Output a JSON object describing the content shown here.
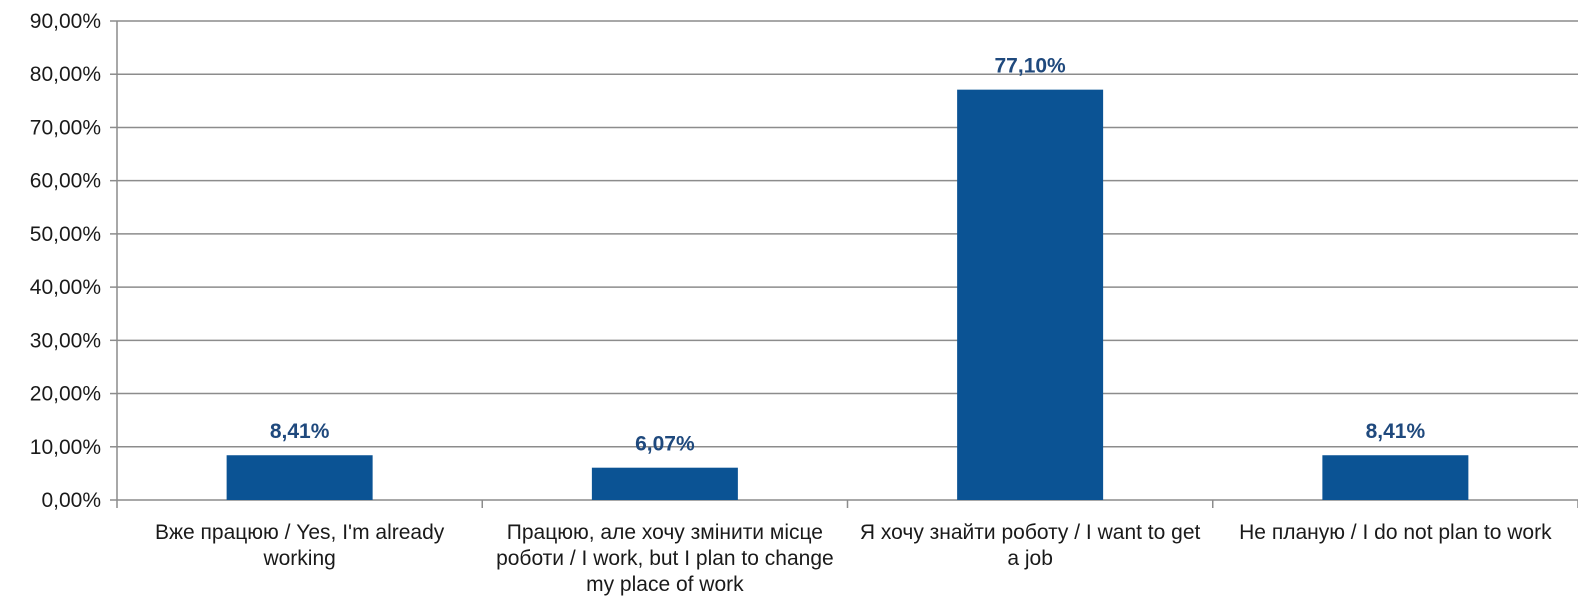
{
  "chart_data": {
    "type": "bar",
    "categories": [
      "Вже працюю / Yes, I'm already working",
      "Працюю, але хочу змінити місце роботи / I work, but I plan to change my place of work",
      "Я хочу знайти роботу / I want to get a job",
      "Не планую / I do not plan to work"
    ],
    "series": [
      {
        "values": [
          8.41,
          6.07,
          77.1,
          8.41
        ]
      }
    ],
    "data_labels": [
      "8,41%",
      "6,07%",
      "77,10%",
      "8,41%"
    ],
    "y_ticks": [
      "0,00%",
      "10,00%",
      "20,00%",
      "30,00%",
      "40,00%",
      "50,00%",
      "60,00%",
      "70,00%",
      "80,00%",
      "90,00%"
    ],
    "ylim": [
      0,
      90
    ],
    "grid": true,
    "legend": "none",
    "colors": {
      "bar": "#0b5394",
      "data_label": "#1f497d",
      "grid": "#8c8c8c",
      "axis": "#8c8c8c",
      "text": "#1a1a1a"
    }
  }
}
